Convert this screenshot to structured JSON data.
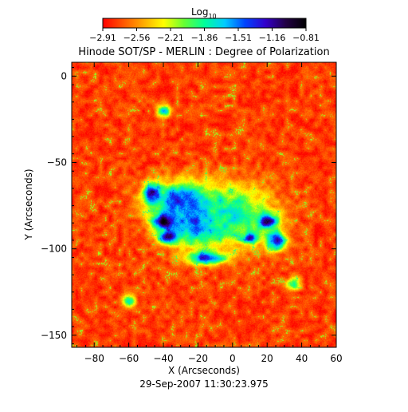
{
  "chart_data": {
    "type": "heatmap",
    "title": "Hinode SOT/SP - MERLIN : Degree of Polarization",
    "xlabel": "X (Arcseconds)",
    "ylabel": "Y (Arcseconds)",
    "timestamp": "29-Sep-2007 11:30:23.975",
    "xlim": [
      -93,
      60
    ],
    "ylim": [
      -157,
      8
    ],
    "x_ticks": [
      -80,
      -60,
      -40,
      -20,
      0,
      20,
      40,
      60
    ],
    "y_ticks": [
      0,
      -50,
      -100,
      -150
    ],
    "colorbar": {
      "label_base": "Log",
      "label_subscript": "10",
      "range": [
        -2.91,
        -0.81
      ],
      "tick_labels": [
        "−2.91",
        "−2.56",
        "−2.21",
        "−1.86",
        "−1.51",
        "−1.16",
        "−0.81"
      ],
      "stops": [
        "#ff0000",
        "#ff5500",
        "#ffaa00",
        "#ffff00",
        "#66ff33",
        "#00ff99",
        "#00ccff",
        "#0044ff",
        "#3300cc",
        "#220044",
        "#000000"
      ]
    },
    "field": {
      "background_log_dop": -2.75,
      "regions": [
        {
          "x": -30,
          "y": -72,
          "rx": 20,
          "ry": 12,
          "peak": -1.4
        },
        {
          "x": -22,
          "y": -85,
          "rx": 18,
          "ry": 14,
          "peak": -1.45
        },
        {
          "x": -40,
          "y": -84,
          "rx": 7,
          "ry": 5,
          "peak": -0.85
        },
        {
          "x": -47,
          "y": -68,
          "rx": 5,
          "ry": 6,
          "peak": -1.15
        },
        {
          "x": -37,
          "y": -93,
          "rx": 6,
          "ry": 4,
          "peak": -1.05
        },
        {
          "x": 20,
          "y": -84,
          "rx": 7,
          "ry": 5,
          "peak": -1.0
        },
        {
          "x": 10,
          "y": -93,
          "rx": 5,
          "ry": 4,
          "peak": -1.1
        },
        {
          "x": -15,
          "y": -105,
          "rx": 12,
          "ry": 4,
          "peak": -1.3
        },
        {
          "x": 0,
          "y": -80,
          "rx": 25,
          "ry": 18,
          "peak": -1.75
        },
        {
          "x": 25,
          "y": -95,
          "rx": 6,
          "ry": 6,
          "peak": -1.2
        },
        {
          "x": -40,
          "y": -20,
          "rx": 4,
          "ry": 4,
          "peak": -1.7
        },
        {
          "x": -60,
          "y": -130,
          "rx": 4,
          "ry": 4,
          "peak": -1.8
        },
        {
          "x": 35,
          "y": -120,
          "rx": 4,
          "ry": 4,
          "peak": -1.75
        }
      ]
    }
  }
}
